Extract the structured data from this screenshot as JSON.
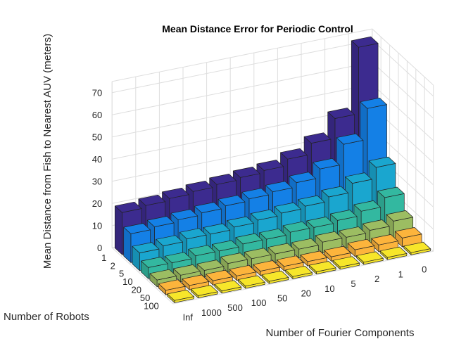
{
  "chart_data": {
    "type": "bar3d",
    "title": "Mean Distance Error for Periodic Control",
    "xlabel": "Number of Fourier Components",
    "ylabel": "Number of Robots",
    "zlabel": "Mean Distance from Fish to Nearest AUV (meters)",
    "fourier_components": [
      "Inf",
      "1000",
      "500",
      "100",
      "50",
      "20",
      "10",
      "5",
      "2",
      "1",
      "0"
    ],
    "robots": [
      "1",
      "2",
      "5",
      "10",
      "20",
      "50",
      "100"
    ],
    "zticks": [
      0,
      10,
      20,
      30,
      40,
      50,
      60,
      70
    ],
    "zlim": [
      0,
      75
    ],
    "grid": true,
    "colors": [
      "#3c2b8f",
      "#1480e6",
      "#1aa6cf",
      "#33b8a0",
      "#9cbd62",
      "#fcb43c",
      "#f7e62a"
    ],
    "values": [
      [
        19,
        20,
        21,
        22,
        23,
        24,
        25,
        28,
        33,
        42,
        72
      ],
      [
        13,
        14,
        15,
        16,
        17,
        18,
        19,
        21,
        25,
        34,
        48
      ],
      [
        8,
        9,
        10,
        10,
        11,
        12,
        13,
        14,
        16,
        20,
        25
      ],
      [
        5,
        5,
        6,
        6,
        7,
        7,
        8,
        8,
        9,
        11,
        15
      ],
      [
        3,
        3,
        3,
        4,
        4,
        4,
        4,
        5,
        5,
        6,
        8
      ],
      [
        2,
        2,
        2,
        2,
        2,
        2,
        2,
        2,
        3,
        3,
        4
      ],
      [
        1,
        1,
        1,
        1,
        1,
        1,
        1,
        1,
        1,
        1,
        1
      ]
    ]
  }
}
